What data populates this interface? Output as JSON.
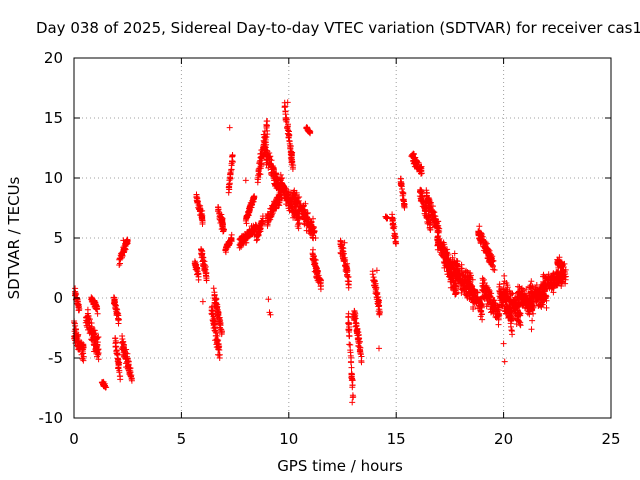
{
  "chart_data": {
    "type": "scatter",
    "title": "Day 038 of 2025, Sidereal Day-to-day VTEC variation (SDTVAR) for receiver cas1",
    "xlabel": "GPS time / hours",
    "ylabel": "SDTVAR / TECUs",
    "xlim": [
      0,
      25
    ],
    "ylim": [
      -10,
      20
    ],
    "xticks": [
      0,
      5,
      10,
      15,
      20,
      25
    ],
    "yticks": [
      -10,
      -5,
      0,
      5,
      10,
      15,
      20
    ],
    "grid": true,
    "marker": "+",
    "color": "#ff0000",
    "series": [
      {
        "name": "cas1",
        "segments": [
          {
            "x0": 0.0,
            "x1": 0.45,
            "y0": -2.8,
            "y1": -4.5,
            "spread": 1.8
          },
          {
            "x0": 0.05,
            "x1": 0.25,
            "y0": 0.5,
            "y1": -1.0,
            "spread": 0.8
          },
          {
            "x0": 0.55,
            "x1": 1.15,
            "y0": -1.5,
            "y1": -4.5,
            "spread": 2.2
          },
          {
            "x0": 0.8,
            "x1": 1.1,
            "y0": 0.0,
            "y1": -1.0,
            "spread": 0.8
          },
          {
            "x0": 1.3,
            "x1": 1.5,
            "y0": -7.0,
            "y1": -7.5,
            "spread": 0.4
          },
          {
            "x0": 1.85,
            "x1": 2.1,
            "y0": 0.0,
            "y1": -2.0,
            "spread": 1.0
          },
          {
            "x0": 1.9,
            "x1": 2.15,
            "y0": -3.5,
            "y1": -6.5,
            "spread": 1.2
          },
          {
            "x0": 2.1,
            "x1": 2.5,
            "y0": 3.0,
            "y1": 4.8,
            "spread": 0.8
          },
          {
            "x0": 2.2,
            "x1": 2.7,
            "y0": -3.5,
            "y1": -6.8,
            "spread": 1.5
          },
          {
            "x0": 5.6,
            "x1": 5.8,
            "y0": 3.0,
            "y1": 1.8,
            "spread": 0.8
          },
          {
            "x0": 5.7,
            "x1": 6.0,
            "y0": 8.5,
            "y1": 6.5,
            "spread": 1.0
          },
          {
            "x0": 5.9,
            "x1": 6.2,
            "y0": 4.0,
            "y1": 1.5,
            "spread": 1.2
          },
          {
            "x0": 6.4,
            "x1": 6.8,
            "y0": -1.0,
            "y1": -5.0,
            "spread": 2.0
          },
          {
            "x0": 6.5,
            "x1": 6.9,
            "y0": 0.5,
            "y1": -3.0,
            "spread": 1.2
          },
          {
            "x0": 6.7,
            "x1": 7.0,
            "y0": 7.5,
            "y1": 5.5,
            "spread": 1.2
          },
          {
            "x0": 7.05,
            "x1": 7.35,
            "y0": 4.0,
            "y1": 5.0,
            "spread": 0.6
          },
          {
            "x0": 7.2,
            "x1": 7.4,
            "y0": 9.0,
            "y1": 12.0,
            "spread": 1.2
          },
          {
            "x0": 7.7,
            "x1": 8.5,
            "y0": 4.5,
            "y1": 6.0,
            "spread": 1.0
          },
          {
            "x0": 8.0,
            "x1": 8.4,
            "y0": 6.5,
            "y1": 8.5,
            "spread": 0.8
          },
          {
            "x0": 8.5,
            "x1": 8.8,
            "y0": 5.0,
            "y1": 6.5,
            "spread": 1.0
          },
          {
            "x0": 8.55,
            "x1": 9.0,
            "y0": 10.0,
            "y1": 14.5,
            "spread": 2.0
          },
          {
            "x0": 8.8,
            "x1": 9.6,
            "y0": 12.5,
            "y1": 9.0,
            "spread": 2.0
          },
          {
            "x0": 9.0,
            "x1": 9.6,
            "y0": 6.5,
            "y1": 8.5,
            "spread": 1.2
          },
          {
            "x0": 9.6,
            "x1": 10.5,
            "y0": 9.5,
            "y1": 6.5,
            "spread": 2.0
          },
          {
            "x0": 9.8,
            "x1": 10.2,
            "y0": 16.0,
            "y1": 11.0,
            "spread": 1.5
          },
          {
            "x0": 10.2,
            "x1": 11.2,
            "y0": 8.5,
            "y1": 5.5,
            "spread": 2.0
          },
          {
            "x0": 10.8,
            "x1": 11.0,
            "y0": 14.2,
            "y1": 13.8,
            "spread": 0.3
          },
          {
            "x0": 11.1,
            "x1": 11.5,
            "y0": 3.5,
            "y1": 1.0,
            "spread": 1.5
          },
          {
            "x0": 12.4,
            "x1": 12.8,
            "y0": 4.5,
            "y1": 1.5,
            "spread": 1.5
          },
          {
            "x0": 12.75,
            "x1": 13.0,
            "y0": -1.0,
            "y1": -8.5,
            "spread": 2.0
          },
          {
            "x0": 13.0,
            "x1": 13.4,
            "y0": -1.0,
            "y1": -5.0,
            "spread": 1.5
          },
          {
            "x0": 13.9,
            "x1": 14.25,
            "y0": 2.0,
            "y1": -1.0,
            "spread": 1.5
          },
          {
            "x0": 14.5,
            "x1": 14.6,
            "y0": 6.8,
            "y1": 6.6,
            "spread": 0.2
          },
          {
            "x0": 14.8,
            "x1": 15.0,
            "y0": 6.8,
            "y1": 4.5,
            "spread": 1.0
          },
          {
            "x0": 15.2,
            "x1": 15.4,
            "y0": 10.0,
            "y1": 7.5,
            "spread": 1.0
          },
          {
            "x0": 15.7,
            "x1": 16.2,
            "y0": 12.0,
            "y1": 10.5,
            "spread": 1.2
          },
          {
            "x0": 16.1,
            "x1": 16.6,
            "y0": 9.0,
            "y1": 6.0,
            "spread": 1.5
          },
          {
            "x0": 16.4,
            "x1": 17.0,
            "y0": 8.5,
            "y1": 5.5,
            "spread": 1.5
          },
          {
            "x0": 16.9,
            "x1": 17.6,
            "y0": 5.0,
            "y1": 2.0,
            "spread": 2.0
          },
          {
            "x0": 17.2,
            "x1": 17.8,
            "y0": 4.0,
            "y1": 0.5,
            "spread": 2.5
          },
          {
            "x0": 17.6,
            "x1": 18.6,
            "y0": 3.0,
            "y1": 0.0,
            "spread": 2.5
          },
          {
            "x0": 18.3,
            "x1": 19.0,
            "y0": 1.5,
            "y1": -1.0,
            "spread": 2.0
          },
          {
            "x0": 18.8,
            "x1": 19.6,
            "y0": 5.5,
            "y1": 2.5,
            "spread": 1.5
          },
          {
            "x0": 19.0,
            "x1": 19.8,
            "y0": 1.0,
            "y1": -1.5,
            "spread": 2.0
          },
          {
            "x0": 19.8,
            "x1": 20.4,
            "y0": 0.5,
            "y1": -2.0,
            "spread": 2.0
          },
          {
            "x0": 20.0,
            "x1": 20.8,
            "y0": 0.5,
            "y1": -1.5,
            "spread": 2.5
          },
          {
            "x0": 20.6,
            "x1": 21.4,
            "y0": 0.5,
            "y1": -1.0,
            "spread": 2.2
          },
          {
            "x0": 21.2,
            "x1": 22.0,
            "y0": 0.5,
            "y1": 0.0,
            "spread": 2.0
          },
          {
            "x0": 21.8,
            "x1": 22.9,
            "y0": 1.0,
            "y1": 2.0,
            "spread": 2.0
          },
          {
            "x0": 22.5,
            "x1": 22.8,
            "y0": 3.0,
            "y1": 2.5,
            "spread": 0.8
          }
        ],
        "outliers": [
          [
            0.05,
            0.8
          ],
          [
            2.3,
            4.8
          ],
          [
            6.0,
            -0.3
          ],
          [
            7.25,
            14.2
          ],
          [
            8.0,
            9.8
          ],
          [
            9.05,
            -0.1
          ],
          [
            9.1,
            -1.2
          ],
          [
            9.15,
            -1.4
          ],
          [
            9.95,
            16.3
          ],
          [
            11.25,
            5.0
          ],
          [
            12.6,
            4.6
          ],
          [
            12.95,
            -8.7
          ],
          [
            14.1,
            2.3
          ],
          [
            14.2,
            -4.2
          ],
          [
            19.5,
            2.6
          ],
          [
            20.05,
            -5.3
          ],
          [
            22.6,
            3.4
          ],
          [
            20.0,
            -3.8
          ],
          [
            21.3,
            -2.6
          ],
          [
            19.0,
            -1.8
          ]
        ]
      }
    ]
  }
}
